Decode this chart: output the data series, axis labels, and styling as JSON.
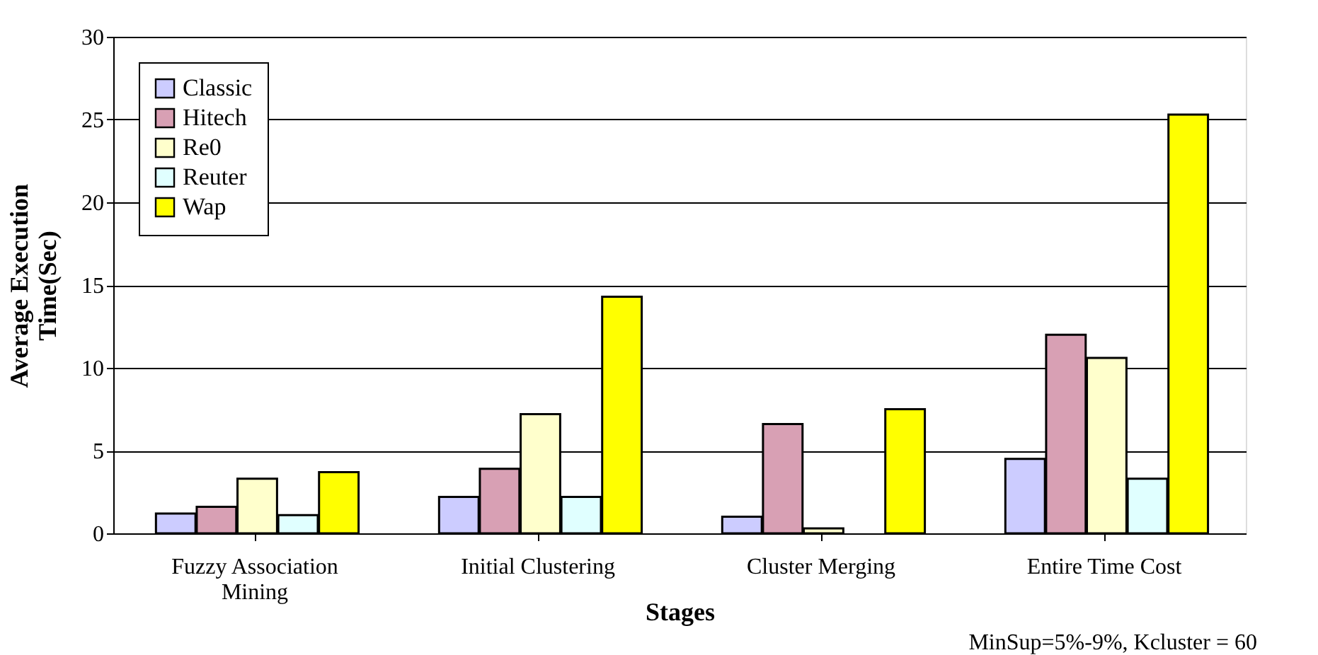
{
  "chart_data": {
    "type": "bar",
    "categories": [
      "Fuzzy Association Mining",
      "Initial Clustering",
      "Cluster Merging",
      "Entire Time Cost"
    ],
    "series": [
      {
        "name": "Classic",
        "color": "#ccccff",
        "values": [
          1.2,
          2.2,
          1.0,
          4.5
        ]
      },
      {
        "name": "Hitech",
        "color": "#d8a0b4",
        "values": [
          1.6,
          3.9,
          6.6,
          12.0
        ]
      },
      {
        "name": "Re0",
        "color": "#ffffcc",
        "values": [
          3.3,
          7.2,
          0.3,
          10.6
        ]
      },
      {
        "name": "Reuter",
        "color": "#e0ffff",
        "values": [
          1.1,
          2.2,
          null,
          3.3
        ]
      },
      {
        "name": "Wap",
        "color": "#ffff00",
        "values": [
          3.7,
          14.3,
          7.5,
          25.3
        ]
      }
    ],
    "xlabel": "Stages",
    "ylabel": "Average Execution Time(Sec)",
    "ylim": [
      0,
      30
    ],
    "yticks": [
      0,
      5,
      10,
      15,
      20,
      25,
      30
    ],
    "grid": "y",
    "legend": "top left",
    "annotations": [
      "MinSup=5%-9%, Kcluster = 60"
    ]
  }
}
